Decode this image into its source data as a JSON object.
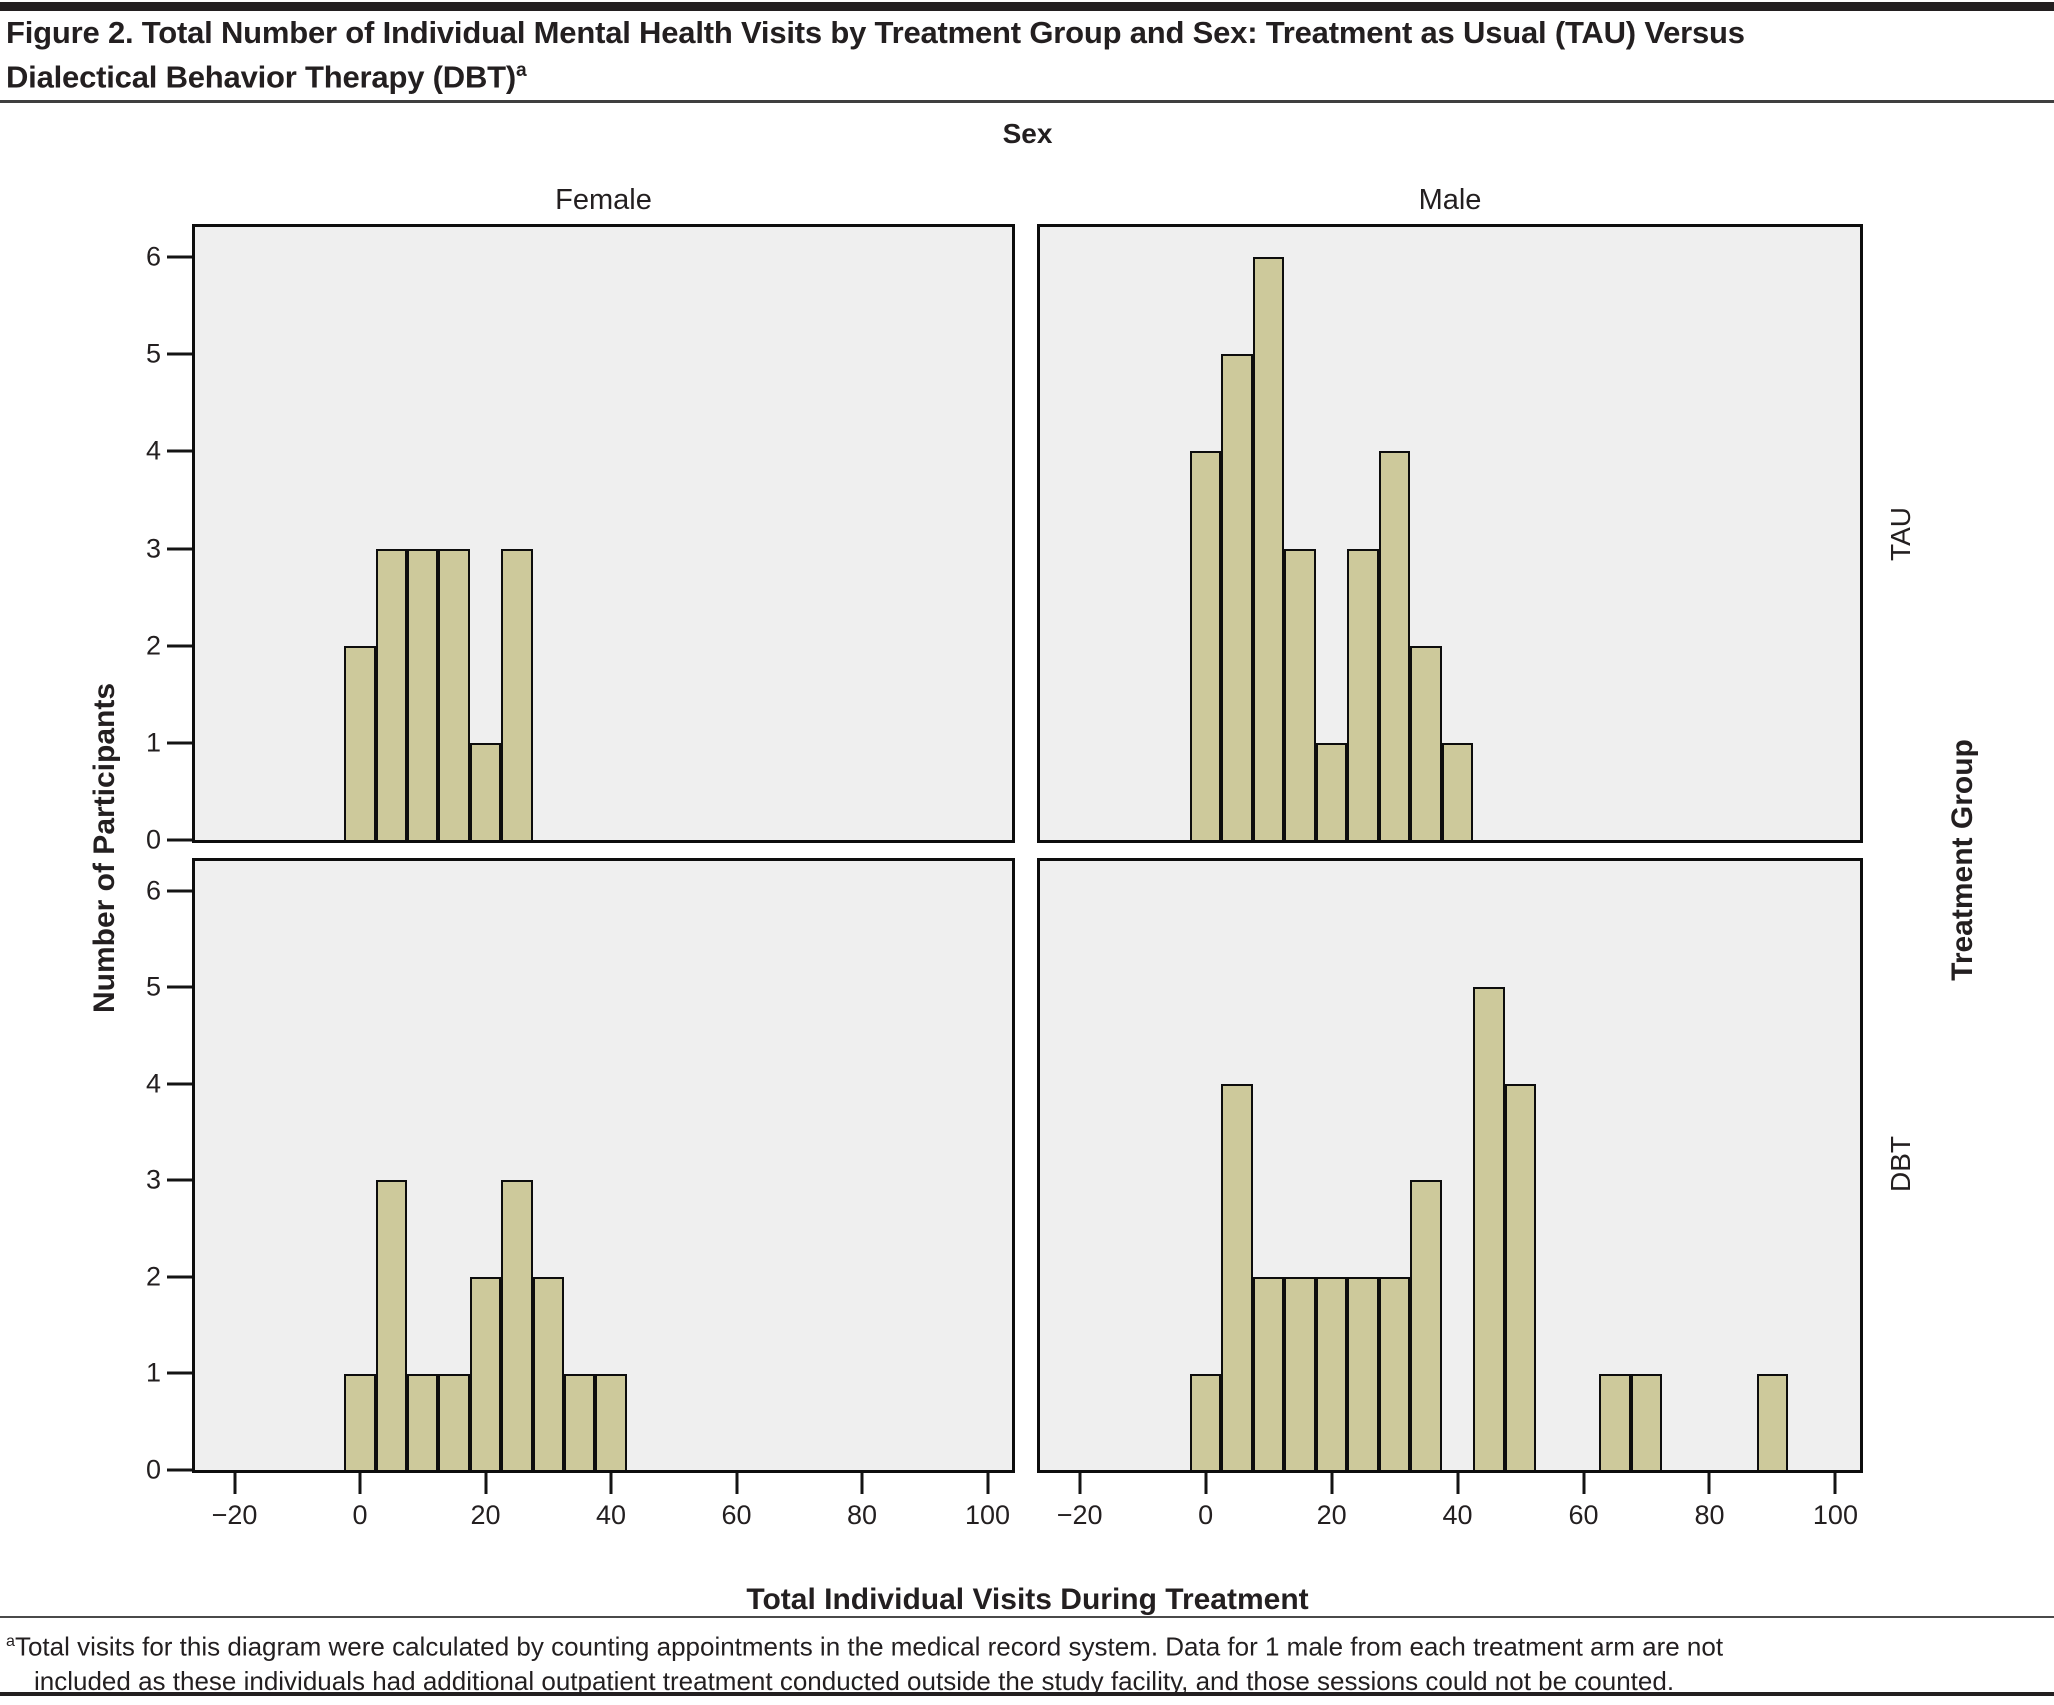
{
  "figure": {
    "title_lines": [
      "Figure 2. Total Number of Individual Mental Health Visits by Treatment Group and Sex: Treatment as Usual (TAU) Versus",
      "Dialectical Behavior Therapy (DBT)"
    ],
    "title_sup": "a",
    "footnote_sup": "a",
    "footnote_lines": [
      "Total visits for this diagram were calculated by counting appointments in the medical record system. Data for 1 male from each treatment arm are not",
      "included as these individuals had additional outpatient treatment conducted outside the study facility, and those sessions could not be counted."
    ]
  },
  "chart_data": {
    "type": "bar",
    "chart_kind": "faceted-histogram-2x2",
    "facet_col_header": "Sex",
    "columns": [
      "Female",
      "Male"
    ],
    "rows": [
      "TAU",
      "DBT"
    ],
    "row_axis_title": "Treatment Group",
    "xlabel": "Total Individual Visits During Treatment",
    "ylabel": "Number of Participants",
    "bin_width": 5,
    "xlim": [
      -26.3,
      103.9
    ],
    "ylim": [
      0,
      6.31
    ],
    "grid": false,
    "legend": "none",
    "x_ticks": [
      {
        "v": -20,
        "label": "−20"
      },
      {
        "v": 0,
        "label": "0"
      },
      {
        "v": 20,
        "label": "20"
      },
      {
        "v": 40,
        "label": "40"
      },
      {
        "v": 60,
        "label": "60"
      },
      {
        "v": 80,
        "label": "80"
      },
      {
        "v": 100,
        "label": "100"
      }
    ],
    "y_ticks": [
      {
        "v": 0,
        "label": "0"
      },
      {
        "v": 1,
        "label": "1"
      },
      {
        "v": 2,
        "label": "2"
      },
      {
        "v": 3,
        "label": "3"
      },
      {
        "v": 4,
        "label": "4"
      },
      {
        "v": 5,
        "label": "5"
      },
      {
        "v": 6,
        "label": "6"
      }
    ],
    "panels": [
      {
        "row": "TAU",
        "col": "Female",
        "bin_centers": [
          0,
          5,
          10,
          15,
          20,
          25
        ],
        "counts": [
          2,
          3,
          3,
          3,
          1,
          3
        ]
      },
      {
        "row": "TAU",
        "col": "Male",
        "bin_centers": [
          0,
          5,
          10,
          15,
          20,
          25,
          30,
          35,
          40
        ],
        "counts": [
          4,
          5,
          6,
          3,
          1,
          3,
          4,
          2,
          1
        ]
      },
      {
        "row": "DBT",
        "col": "Female",
        "bin_centers": [
          0,
          5,
          10,
          15,
          20,
          25,
          30,
          35,
          40
        ],
        "counts": [
          1,
          3,
          1,
          1,
          2,
          3,
          2,
          1,
          1
        ]
      },
      {
        "row": "DBT",
        "col": "Male",
        "bin_centers": [
          0,
          5,
          10,
          15,
          20,
          25,
          30,
          35,
          45,
          50,
          65,
          70,
          90
        ],
        "counts": [
          1,
          4,
          2,
          2,
          2,
          2,
          2,
          3,
          5,
          4,
          1,
          1,
          1
        ]
      }
    ],
    "colors": {
      "bar_fill": "#cdc99b",
      "bar_border": "#0d0d0d",
      "panel_bg": "#efefef",
      "text": "#231f20",
      "rule": "#231f20"
    }
  }
}
